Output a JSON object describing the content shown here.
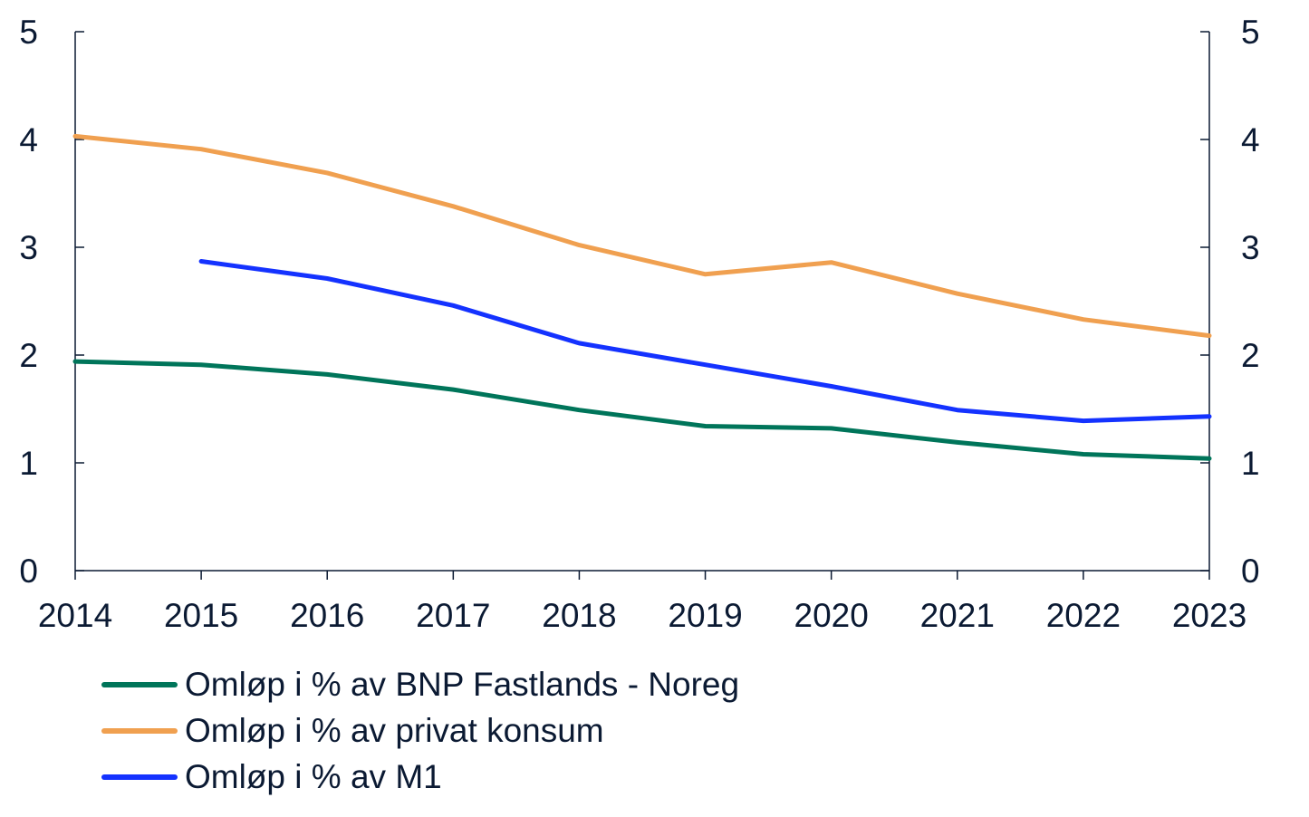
{
  "chart_data": {
    "type": "line",
    "x": [
      "2014",
      "2015",
      "2016",
      "2017",
      "2018",
      "2019",
      "2020",
      "2021",
      "2022",
      "2023"
    ],
    "ylim": [
      0,
      5
    ],
    "y_ticks": [
      "0",
      "1",
      "2",
      "3",
      "4",
      "5"
    ],
    "secondary_y_ticks": [
      "0",
      "1",
      "2",
      "3",
      "4",
      "5"
    ],
    "grid": false,
    "legend_position": "bottom-left",
    "series": [
      {
        "name": "Omløp i % av BNP Fastlands - Noreg",
        "color": "#00755a",
        "values": [
          1.94,
          1.91,
          1.82,
          1.68,
          1.49,
          1.34,
          1.32,
          1.19,
          1.08,
          1.04
        ]
      },
      {
        "name": "Omløp i % av privat konsum",
        "color": "#f0a050",
        "values": [
          4.03,
          3.91,
          3.69,
          3.38,
          3.02,
          2.75,
          2.86,
          2.57,
          2.33,
          2.18
        ]
      },
      {
        "name": "Omløp i % av M1",
        "color": "#1432ff",
        "values": [
          null,
          2.87,
          2.71,
          2.46,
          2.11,
          1.91,
          1.71,
          1.49,
          1.39,
          1.43
        ]
      }
    ]
  }
}
